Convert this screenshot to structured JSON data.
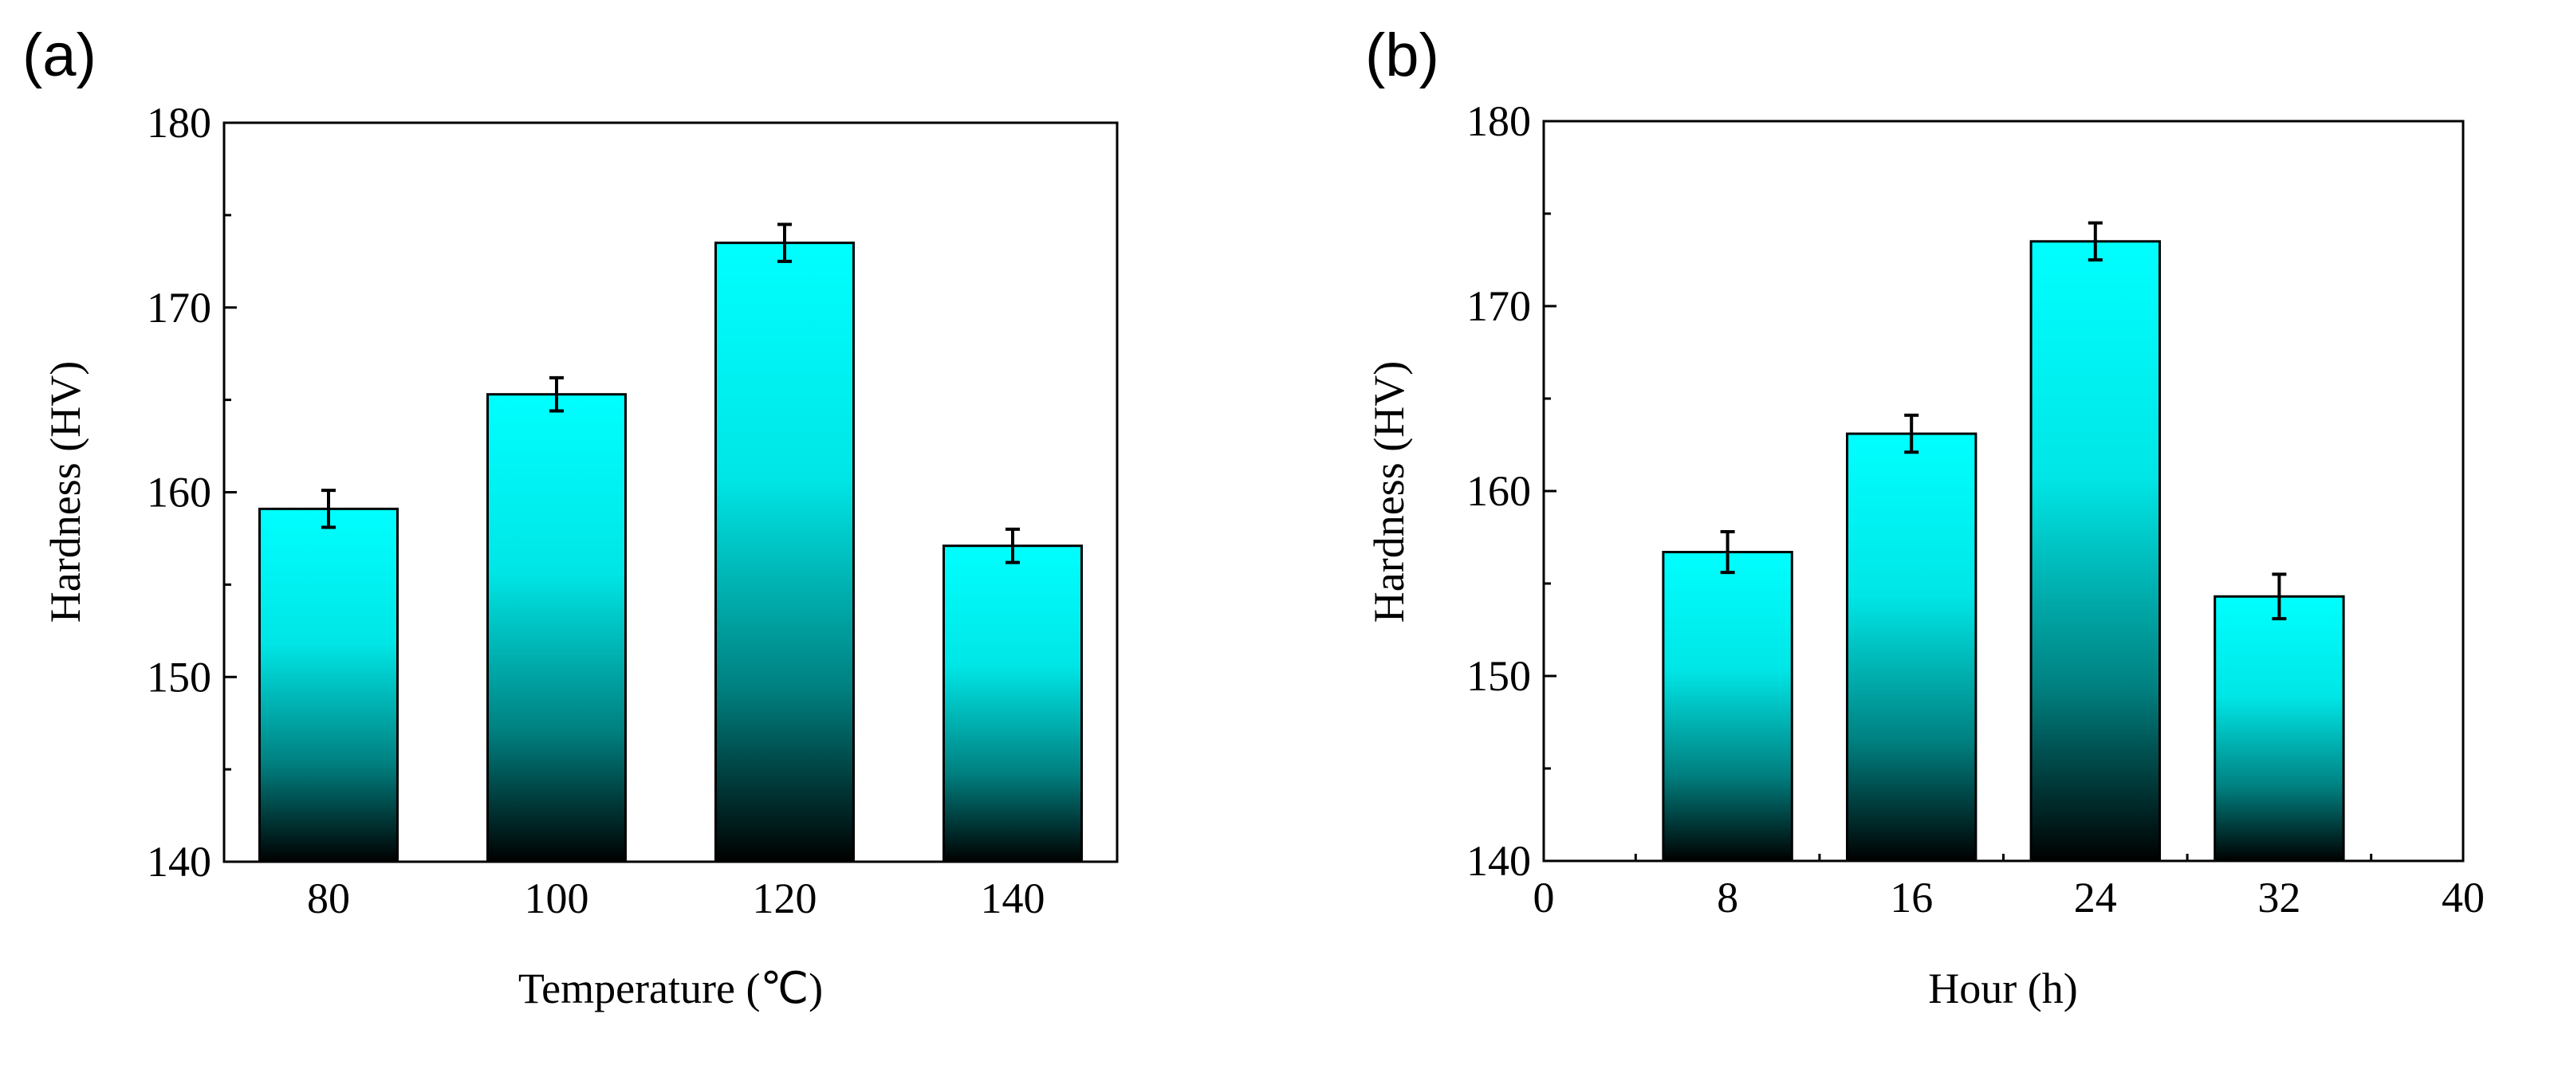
{
  "chart_data": [
    {
      "panel_label": "(a)",
      "type": "bar",
      "xlabel": "Temperature (℃)",
      "ylabel": "Hardness (HV)",
      "ylim": [
        140,
        180
      ],
      "yticks": [
        140,
        150,
        160,
        170,
        180
      ],
      "x_axis": "categorical",
      "categories": [
        "80",
        "100",
        "120",
        "140"
      ],
      "values": [
        159.1,
        165.3,
        173.5,
        157.1
      ],
      "errors": [
        1.0,
        0.9,
        1.0,
        0.9
      ],
      "bar_color_top": "#00ffff",
      "bar_color_bottom": "#000000"
    },
    {
      "panel_label": "(b)",
      "type": "bar",
      "xlabel": "Hour (h)",
      "ylabel": "Hardness (HV)",
      "ylim": [
        140,
        180
      ],
      "yticks": [
        140,
        150,
        160,
        170,
        180
      ],
      "x_axis": "numeric",
      "xlim": [
        0,
        40
      ],
      "xticks": [
        0,
        8,
        16,
        24,
        32,
        40
      ],
      "bar_width": 5.6,
      "x": [
        8,
        16,
        24,
        32
      ],
      "values": [
        156.7,
        163.1,
        173.5,
        154.3
      ],
      "errors": [
        1.1,
        1.0,
        1.0,
        1.2
      ],
      "bar_color_top": "#00ffff",
      "bar_color_bottom": "#000000"
    }
  ]
}
